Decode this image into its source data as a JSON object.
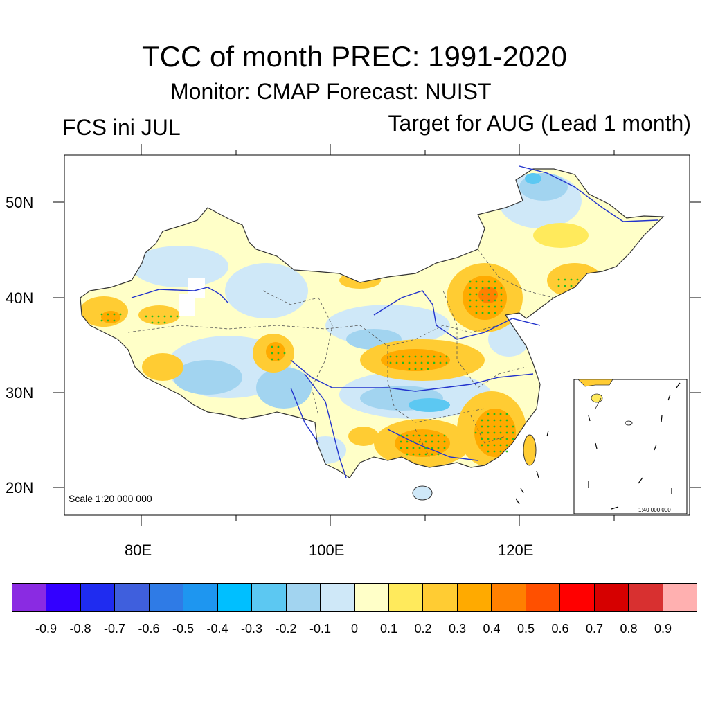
{
  "title": "TCC of month PREC: 1991-2020",
  "subtitle": "Monitor: CMAP   Forecast: NUIST",
  "left_label": "FCS ini JUL",
  "right_label": "Target for AUG (Lead 1 month)",
  "lat_labels": [
    "50N",
    "40N",
    "30N",
    "20N"
  ],
  "lon_labels": [
    "80E",
    "100E",
    "120E"
  ],
  "scale_text": "Scale 1:20 000 000",
  "inset_scale_text": "1:40 000 000",
  "colorbar": {
    "colors": [
      "#8a2be2",
      "#3300ff",
      "#1f2cf0",
      "#3f5fdd",
      "#2f7be6",
      "#1e96f0",
      "#00bfff",
      "#5cc8f2",
      "#a2d4f0",
      "#cfe8f8",
      "#ffffc8",
      "#ffea5c",
      "#ffcc33",
      "#ffaa00",
      "#ff8000",
      "#ff5000",
      "#ff0000",
      "#d60000",
      "#d83030",
      "#ffb0b0"
    ],
    "labels": [
      "-0.9",
      "-0.8",
      "-0.7",
      "-0.6",
      "-0.5",
      "-0.4",
      "-0.3",
      "-0.2",
      "-0.1",
      "0",
      "0.1",
      "0.2",
      "0.3",
      "0.4",
      "0.5",
      "0.6",
      "0.7",
      "0.8",
      "0.9"
    ]
  },
  "colors": {
    "strong_pos": "#ff8000",
    "pos": "#ffcc33",
    "weak_pos": "#ffea5c",
    "neutral_pos": "#ffffc8",
    "neutral_neg": "#cfe8f8",
    "neg": "#a2d4f0",
    "strong_neg": "#5cc8f2",
    "significance_dot": "#22bb22",
    "river": "#2233cc"
  }
}
